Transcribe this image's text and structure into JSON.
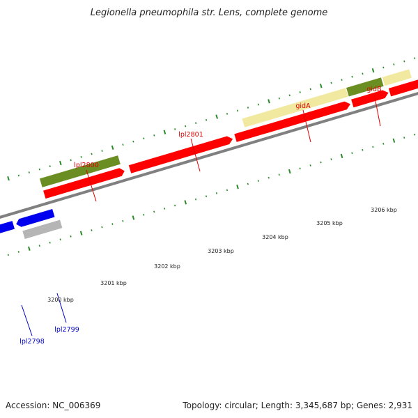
{
  "title": "Legionella pneumophila str. Lens, complete genome",
  "footer": {
    "accession": "Accession: NC_006369",
    "summary": "Topology: circular; Length: 3,345,687 bp; Genes: 2,931"
  },
  "scale_labels": [
    "3200 kbp",
    "3201 kbp",
    "3202 kbp",
    "3203 kbp",
    "3204 kbp",
    "3205 kbp",
    "3206 kbp"
  ],
  "genes": {
    "forward": [
      {
        "label": "lpl2800",
        "type": "cds",
        "color": "#ff0000"
      },
      {
        "label": "lpl2801",
        "type": "cds",
        "color": "#ff0000"
      },
      {
        "label": "gidA",
        "type": "cds",
        "color": "#ff0000"
      },
      {
        "label": "gidB",
        "type": "cds",
        "color": "#ff0000"
      }
    ],
    "reverse": [
      {
        "label": "lpl2798",
        "type": "cds",
        "color": "#0000ee"
      },
      {
        "label": "lpl2799",
        "type": "cds",
        "color": "#0000ee"
      }
    ]
  },
  "colors": {
    "backbone": "#808080",
    "forward_label": "#dd0000",
    "reverse_label": "#0000cc",
    "tick": "#2a8a2a",
    "cog_olive": "#6b8e23",
    "cog_yellow": "#f2e9a0",
    "cog_gray": "#b5b5b5"
  }
}
